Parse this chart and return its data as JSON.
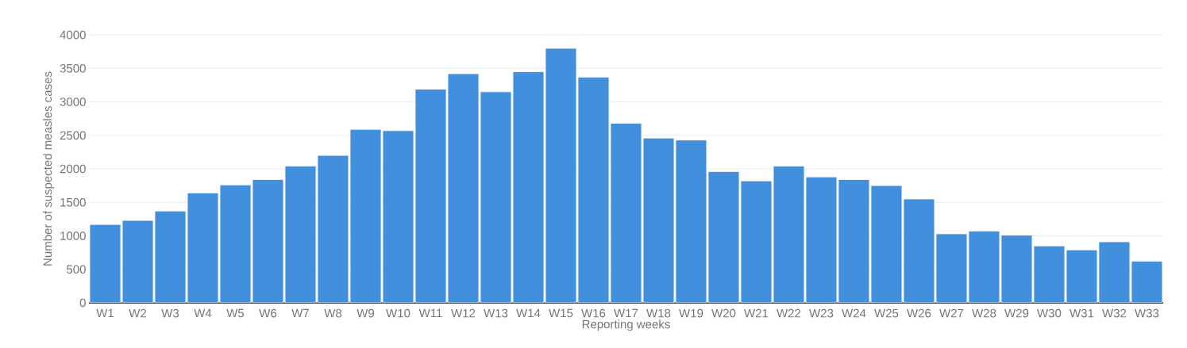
{
  "chart_data": {
    "type": "bar",
    "xlabel": "Reporting weeks",
    "ylabel": "Number of suspected measles cases",
    "categories": [
      "W1",
      "W2",
      "W3",
      "W4",
      "W5",
      "W6",
      "W7",
      "W8",
      "W9",
      "W10",
      "W11",
      "W12",
      "W13",
      "W14",
      "W15",
      "W16",
      "W17",
      "W18",
      "W19",
      "W20",
      "W21",
      "W22",
      "W23",
      "W24",
      "W25",
      "W26",
      "W27",
      "W28",
      "W29",
      "W30",
      "W31",
      "W32",
      "W33"
    ],
    "values": [
      1170,
      1230,
      1370,
      1640,
      1760,
      1840,
      2040,
      2200,
      2590,
      2570,
      3190,
      3420,
      3150,
      3450,
      3800,
      3370,
      2680,
      2460,
      2430,
      1960,
      1820,
      2040,
      1880,
      1840,
      1750,
      1550,
      1030,
      1070,
      1010,
      850,
      790,
      910,
      620
    ],
    "color": "#428fdd",
    "ylim": [
      0,
      4000
    ],
    "yticks": [
      0,
      500,
      1000,
      1500,
      2000,
      2500,
      3000,
      3500,
      4000
    ],
    "grid": "y"
  }
}
